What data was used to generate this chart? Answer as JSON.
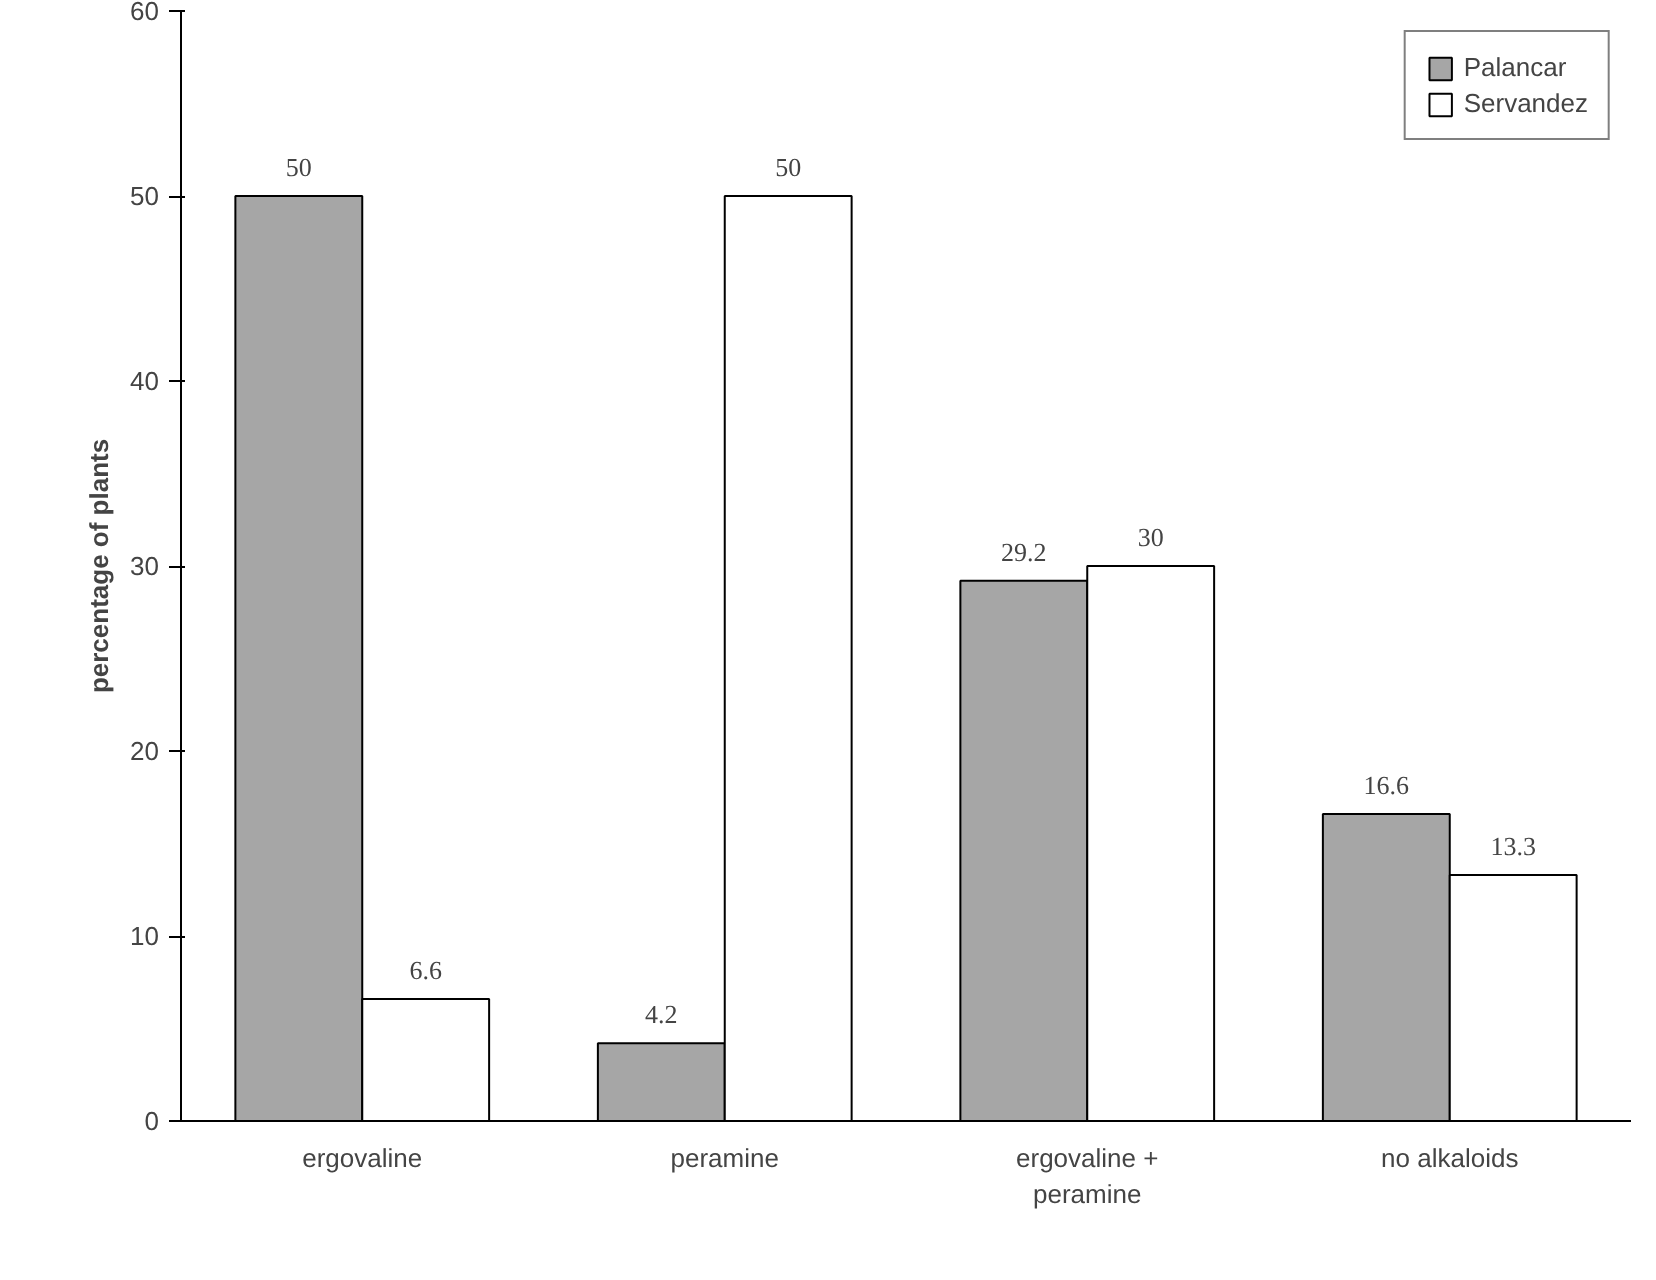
{
  "chart_data": {
    "type": "bar",
    "ylabel": "percentage of plants",
    "categories": [
      "ergovaline",
      "peramine",
      "ergovaline + peramine",
      "no alkaloids"
    ],
    "series": [
      {
        "name": "Palancar",
        "color": "#a6a6a6",
        "values": [
          50,
          4.2,
          29.2,
          16.6
        ]
      },
      {
        "name": "Servandez",
        "color": "#ffffff",
        "values": [
          6.6,
          50,
          30,
          13.3
        ]
      }
    ],
    "ylim": [
      0,
      60
    ],
    "yticks": [
      0,
      10,
      20,
      30,
      40,
      50,
      60
    ],
    "data_labels": true,
    "legend": "top right",
    "grid": false
  }
}
